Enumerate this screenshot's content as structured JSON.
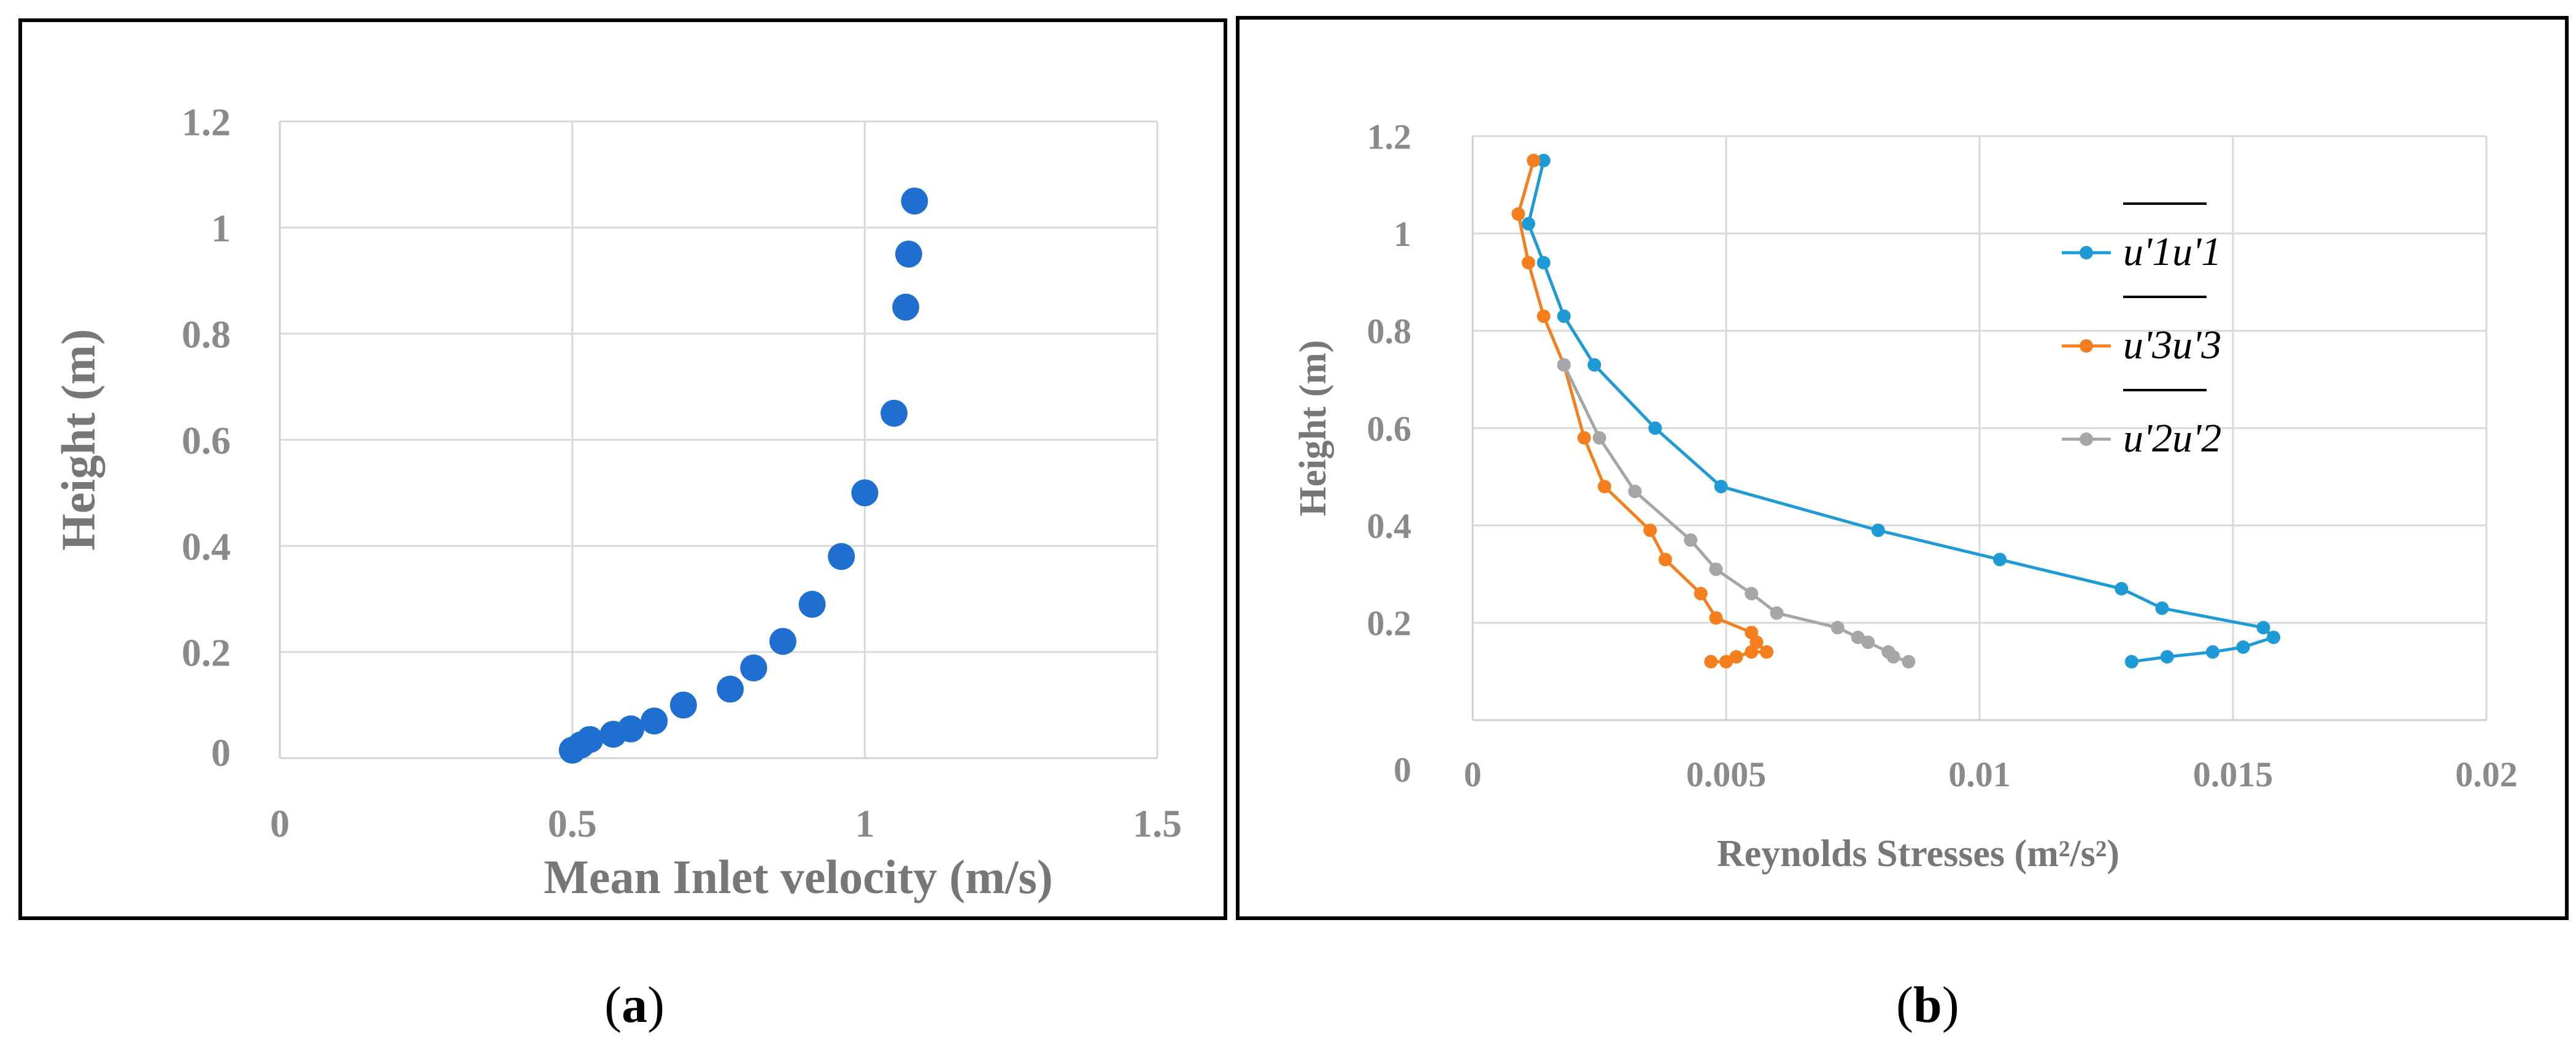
{
  "panels": {
    "a": {
      "label": "a"
    },
    "b": {
      "label": "b"
    }
  },
  "chart_data": [
    {
      "id": "a",
      "type": "scatter",
      "title": "",
      "xlabel": "Mean Inlet velocity (m/s)",
      "ylabel": "Height (m)",
      "xlim": [
        0,
        1.5
      ],
      "ylim": [
        0,
        1.2
      ],
      "xticks": [
        0,
        0.5,
        1,
        1.5
      ],
      "xtick_labels": [
        "0",
        "0.5",
        "1",
        "1.5"
      ],
      "yticks": [
        0,
        0.2,
        0.4,
        0.6,
        0.8,
        1,
        1.2
      ],
      "ytick_labels": [
        "0",
        "0.2",
        "0.4",
        "0.6",
        "0.8",
        "1",
        "1.2"
      ],
      "grid": true,
      "color": "#1f6fd1",
      "series": [
        {
          "name": "Mean inlet velocity",
          "x": [
            0.5,
            0.515,
            0.53,
            0.57,
            0.6,
            0.64,
            0.69,
            0.77,
            0.81,
            0.86,
            0.91,
            0.96,
            1.0,
            1.05,
            1.07,
            1.075,
            1.085
          ],
          "y": [
            0.015,
            0.025,
            0.035,
            0.045,
            0.055,
            0.07,
            0.1,
            0.13,
            0.17,
            0.22,
            0.29,
            0.38,
            0.5,
            0.65,
            0.85,
            0.95,
            1.05
          ]
        }
      ]
    },
    {
      "id": "b",
      "type": "line",
      "title": "",
      "xlabel": "Reynolds Stresses (m²/s²)",
      "ylabel": "Height (m)",
      "xlim": [
        0,
        0.02
      ],
      "ylim": [
        0,
        1.2
      ],
      "xticks": [
        0,
        0.005,
        0.01,
        0.015,
        0.02
      ],
      "xtick_labels": [
        "0",
        "0.005",
        "0.01",
        "0.015",
        "0.02"
      ],
      "yticks": [
        0,
        0.2,
        0.4,
        0.6,
        0.8,
        1,
        1.2
      ],
      "ytick_labels": [
        "0",
        "0.2",
        "0.4",
        "0.6",
        "0.8",
        "1",
        "1.2"
      ],
      "grid": true,
      "legend_position": "top-right",
      "series": [
        {
          "name": "u'1u'1",
          "color": "#1e9ad6",
          "x": [
            0.013,
            0.0137,
            0.0146,
            0.0152,
            0.0158,
            0.0156,
            0.0136,
            0.0128,
            0.0104,
            0.008,
            0.0049,
            0.0036,
            0.0024,
            0.0018,
            0.0014,
            0.0011,
            0.0014
          ],
          "y": [
            0.12,
            0.13,
            0.14,
            0.15,
            0.17,
            0.19,
            0.23,
            0.27,
            0.33,
            0.39,
            0.48,
            0.6,
            0.73,
            0.83,
            0.94,
            1.02,
            1.15
          ]
        },
        {
          "name": "u'3u'3",
          "color": "#f57e1e",
          "x": [
            0.0047,
            0.005,
            0.0052,
            0.0055,
            0.0058,
            0.0056,
            0.0055,
            0.0048,
            0.0045,
            0.0038,
            0.0035,
            0.0026,
            0.0022,
            0.0018,
            0.0014,
            0.0011,
            0.0009,
            0.0012
          ],
          "y": [
            0.12,
            0.12,
            0.13,
            0.14,
            0.14,
            0.16,
            0.18,
            0.21,
            0.26,
            0.33,
            0.39,
            0.48,
            0.58,
            0.73,
            0.83,
            0.94,
            1.04,
            1.15
          ]
        },
        {
          "name": "u'2u'2",
          "color": "#a6a6a6",
          "x": [
            0.0086,
            0.0083,
            0.0082,
            0.0078,
            0.0076,
            0.0072,
            0.006,
            0.0055,
            0.0048,
            0.0043,
            0.0032,
            0.0025,
            0.0018
          ],
          "y": [
            0.12,
            0.13,
            0.14,
            0.16,
            0.17,
            0.19,
            0.22,
            0.26,
            0.31,
            0.37,
            0.47,
            0.58,
            0.73
          ]
        }
      ]
    }
  ]
}
